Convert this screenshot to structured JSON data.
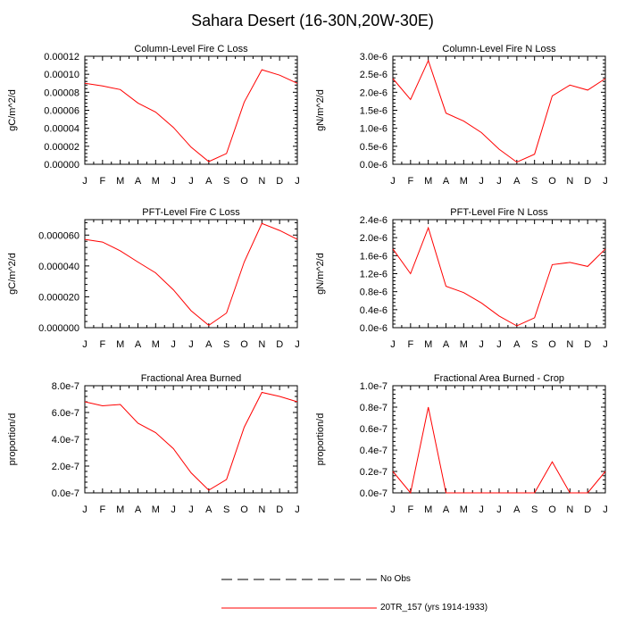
{
  "title": "Sahara Desert (16-30N,20W-30E)",
  "colors": {
    "model_line": "#ff0000",
    "obs_line": "#000000",
    "axis": "#000000"
  },
  "legend": {
    "obs_label": "No Obs",
    "model_label": "20TR_157 (yrs 1914-1933)"
  },
  "chart_data": [
    {
      "type": "line",
      "title": "Column-Level Fire C Loss",
      "ylabel": "gC/m^2/d",
      "x": [
        "J",
        "F",
        "M",
        "A",
        "M",
        "J",
        "J",
        "A",
        "S",
        "O",
        "N",
        "D",
        "J"
      ],
      "ylim": [
        0,
        0.00012
      ],
      "yticks": [
        0,
        2e-05,
        4e-05,
        6e-05,
        8e-05,
        0.0001,
        0.00012
      ],
      "yticklabels": [
        "0.00000",
        "0.00002",
        "0.00004",
        "0.00006",
        "0.00008",
        "0.00010",
        "0.00012"
      ],
      "series": [
        {
          "name": "20TR_157 (yrs 1914-1933)",
          "values": [
            9e-05,
            8.7e-05,
            8.3e-05,
            6.8e-05,
            5.8e-05,
            4.1e-05,
            1.9e-05,
            3e-06,
            1.2e-05,
            6.9e-05,
            0.000105,
            9.9e-05,
            9e-05
          ]
        }
      ]
    },
    {
      "type": "line",
      "title": "Column-Level Fire N Loss",
      "ylabel": "gN/m^2/d",
      "x": [
        "J",
        "F",
        "M",
        "A",
        "M",
        "J",
        "J",
        "A",
        "S",
        "O",
        "N",
        "D",
        "J"
      ],
      "ylim": [
        0,
        3e-06
      ],
      "yticks": [
        0,
        5e-07,
        1e-06,
        1.5e-06,
        2e-06,
        2.5e-06,
        3e-06
      ],
      "yticklabels": [
        "0.0e-6",
        "0.5e-6",
        "1.0e-6",
        "1.5e-6",
        "2.0e-6",
        "2.5e-6",
        "3.0e-6"
      ],
      "series": [
        {
          "name": "20TR_157 (yrs 1914-1933)",
          "values": [
            2.38e-06,
            1.8e-06,
            2.88e-06,
            1.42e-06,
            1.2e-06,
            8.8e-07,
            4.2e-07,
            6e-08,
            2.8e-07,
            1.9e-06,
            2.2e-06,
            2.06e-06,
            2.38e-06
          ]
        }
      ]
    },
    {
      "type": "line",
      "title": "PFT-Level Fire C Loss",
      "ylabel": "gC/m^2/d",
      "x": [
        "J",
        "F",
        "M",
        "A",
        "M",
        "J",
        "J",
        "A",
        "S",
        "O",
        "N",
        "D",
        "J"
      ],
      "ylim": [
        0,
        7e-05
      ],
      "yticks": [
        0,
        2e-05,
        4e-05,
        6e-05
      ],
      "yticklabels": [
        "0.000000",
        "0.000020",
        "0.000040",
        "0.000060"
      ],
      "series": [
        {
          "name": "20TR_157 (yrs 1914-1933)",
          "values": [
            5.72e-05,
            5.55e-05,
            4.98e-05,
            4.25e-05,
            3.55e-05,
            2.45e-05,
            1.1e-05,
            1.5e-06,
            9.5e-06,
            4.25e-05,
            6.75e-05,
            6.3e-05,
            5.72e-05
          ]
        }
      ]
    },
    {
      "type": "line",
      "title": "PFT-Level Fire N Loss",
      "ylabel": "gN/m^2/d",
      "x": [
        "J",
        "F",
        "M",
        "A",
        "M",
        "J",
        "J",
        "A",
        "S",
        "O",
        "N",
        "D",
        "J"
      ],
      "ylim": [
        0,
        2.4e-06
      ],
      "yticks": [
        0,
        4e-07,
        8e-07,
        1.2e-06,
        1.6e-06,
        2e-06,
        2.4e-06
      ],
      "yticklabels": [
        "0.0e-6",
        "0.4e-6",
        "0.8e-6",
        "1.2e-6",
        "1.6e-6",
        "2.0e-6",
        "2.4e-6"
      ],
      "series": [
        {
          "name": "20TR_157 (yrs 1914-1933)",
          "values": [
            1.75e-06,
            1.2e-06,
            2.22e-06,
            9.2e-07,
            7.8e-07,
            5.5e-07,
            2.6e-07,
            4e-08,
            2.2e-07,
            1.4e-06,
            1.45e-06,
            1.36e-06,
            1.75e-06
          ]
        }
      ]
    },
    {
      "type": "line",
      "title": "Fractional Area Burned",
      "ylabel": "proportion/d",
      "x": [
        "J",
        "F",
        "M",
        "A",
        "M",
        "J",
        "J",
        "A",
        "S",
        "O",
        "N",
        "D",
        "J"
      ],
      "ylim": [
        0,
        8e-07
      ],
      "yticks": [
        0,
        2e-07,
        4e-07,
        6e-07,
        8e-07
      ],
      "yticklabels": [
        "0.0e-7",
        "2.0e-7",
        "4.0e-7",
        "6.0e-7",
        "8.0e-7"
      ],
      "series": [
        {
          "name": "20TR_157 (yrs 1914-1933)",
          "values": [
            6.8e-07,
            6.5e-07,
            6.6e-07,
            5.2e-07,
            4.5e-07,
            3.3e-07,
            1.5e-07,
            2e-08,
            1e-07,
            4.9e-07,
            7.5e-07,
            7.2e-07,
            6.8e-07
          ]
        }
      ]
    },
    {
      "type": "line",
      "title": "Fractional Area Burned - Crop",
      "ylabel": "proportion/d",
      "x": [
        "J",
        "F",
        "M",
        "A",
        "M",
        "J",
        "J",
        "A",
        "S",
        "O",
        "N",
        "D",
        "J"
      ],
      "ylim": [
        0,
        1e-07
      ],
      "yticks": [
        0,
        2e-08,
        4e-08,
        6e-08,
        8e-08,
        1e-07
      ],
      "yticklabels": [
        "0.0e-7",
        "0.2e-7",
        "0.4e-7",
        "0.6e-7",
        "0.8e-7",
        "1.0e-7"
      ],
      "series": [
        {
          "name": "20TR_157 (yrs 1914-1933)",
          "values": [
            2e-08,
            0.0,
            8e-08,
            0.0,
            0.0,
            0.0,
            0.0,
            0.0,
            0.0,
            2.9e-08,
            0.0,
            0.0,
            2e-08
          ]
        }
      ]
    }
  ]
}
